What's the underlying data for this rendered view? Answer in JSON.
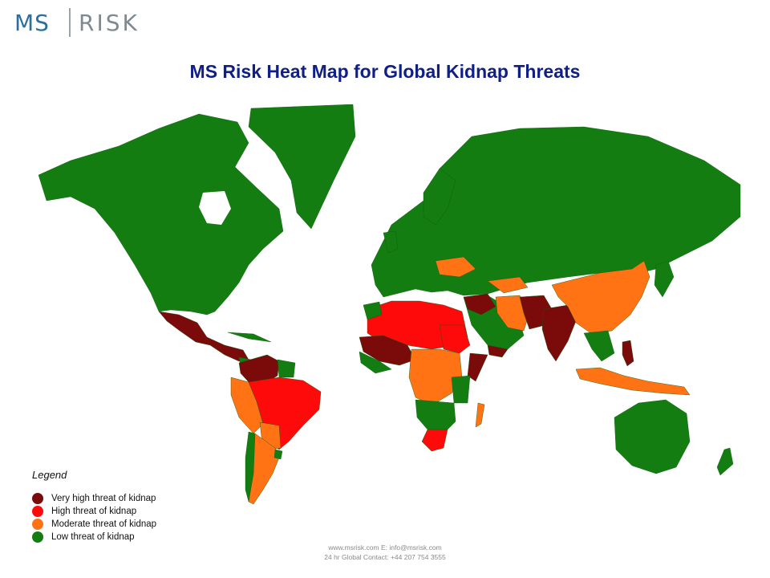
{
  "logo": {
    "left": "MS",
    "right": "RISK"
  },
  "title": "MS Risk Heat Map for Global Kidnap Threats",
  "colors": {
    "very_high": "#7b0a0a",
    "high": "#ff0a0a",
    "moderate": "#ff7315",
    "low": "#137d11",
    "title": "#0f1f86"
  },
  "legend": {
    "title": "Legend",
    "items": [
      {
        "label": "Very high threat of kidnap",
        "level": "very_high",
        "color": "#7b0a0a"
      },
      {
        "label": "High threat of kidnap",
        "level": "high",
        "color": "#ff0a0a"
      },
      {
        "label": "Moderate threat of kidnap",
        "level": "moderate",
        "color": "#ff7315"
      },
      {
        "label": "Low threat of kidnap",
        "level": "low",
        "color": "#137d11"
      }
    ]
  },
  "footer": {
    "line1": "www.msrisk.com E:  info@msrisk.com",
    "line2": "24 hr Global Contact: +44 207 754 3555"
  }
}
